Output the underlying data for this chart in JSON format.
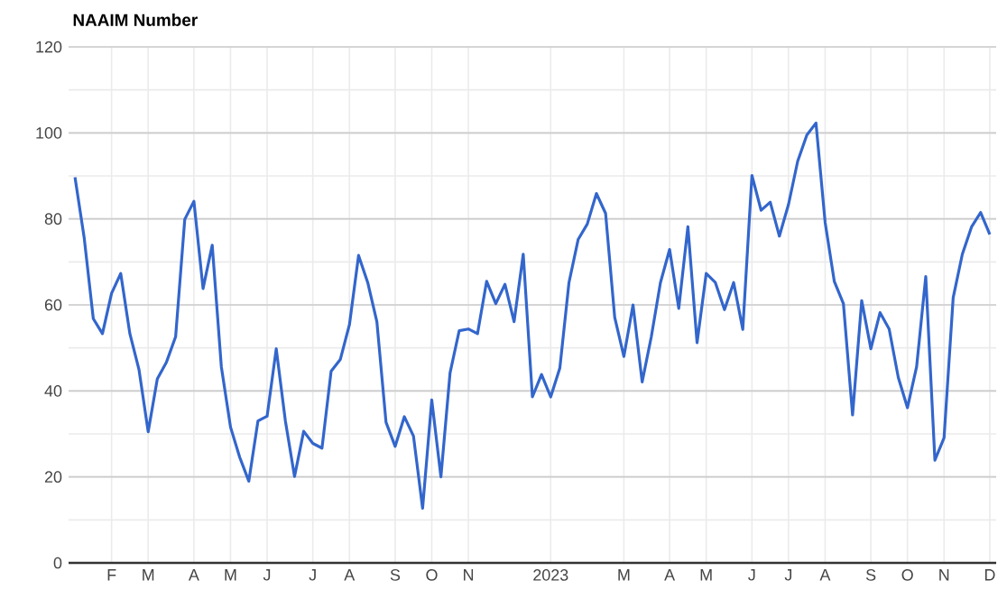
{
  "chart_data": {
    "type": "line",
    "title": "NAAIM Number",
    "grid": true,
    "categories": [
      null,
      null,
      null,
      null,
      "F",
      null,
      null,
      null,
      "M",
      null,
      null,
      null,
      null,
      "A",
      null,
      null,
      null,
      "M",
      null,
      null,
      null,
      "J",
      null,
      null,
      null,
      null,
      "J",
      null,
      null,
      null,
      "A",
      null,
      null,
      null,
      null,
      "S",
      null,
      null,
      null,
      "O",
      null,
      null,
      null,
      "N",
      null,
      null,
      null,
      null,
      null,
      null,
      null,
      null,
      "2023",
      null,
      null,
      null,
      null,
      null,
      null,
      null,
      "M",
      null,
      null,
      null,
      null,
      "A",
      null,
      null,
      null,
      "M",
      null,
      null,
      null,
      null,
      "J",
      null,
      null,
      null,
      "J",
      null,
      null,
      null,
      "A",
      null,
      null,
      null,
      null,
      "S",
      null,
      null,
      null,
      "O",
      null,
      null,
      null,
      "N",
      null,
      null,
      null,
      null,
      "D"
    ],
    "ylim": [
      0,
      120
    ],
    "yticks": [
      0,
      20,
      40,
      60,
      80,
      100,
      120
    ],
    "series": [
      {
        "color": "#3366cc",
        "values": [
          89.7,
          75.7,
          56.8,
          53.3,
          62.7,
          67.3,
          53.3,
          44.9,
          30.5,
          42.8,
          46.7,
          52.6,
          79.9,
          84.1,
          63.8,
          73.9,
          45.6,
          31.6,
          24.6,
          19.0,
          33.0,
          34.1,
          49.8,
          33.0,
          20.1,
          30.6,
          27.8,
          26.7,
          44.6,
          47.3,
          55.4,
          71.5,
          65.2,
          56.1,
          32.7,
          27.1,
          34.0,
          29.5,
          12.7,
          37.9,
          20.0,
          44.2,
          54.0,
          54.4,
          53.3,
          65.5,
          60.3,
          64.8,
          56.1,
          71.8,
          38.6,
          43.8,
          38.6,
          45.3,
          65.2,
          75.2,
          78.8,
          85.9,
          81.3,
          57.1,
          48.0,
          60.0,
          42.1,
          52.6,
          65.2,
          72.9,
          59.2,
          78.2,
          51.2,
          67.3,
          65.2,
          58.9,
          65.2,
          54.3,
          90.1,
          82.0,
          83.9,
          76.0,
          83.4,
          93.4,
          99.5,
          102.3,
          79.2,
          65.5,
          60.3,
          34.4,
          61.0,
          49.8,
          58.2,
          54.4,
          43.1,
          36.1,
          45.6,
          66.6,
          23.9,
          29.1,
          61.7,
          71.8,
          78.1,
          81.5,
          76.4
        ]
      }
    ]
  }
}
